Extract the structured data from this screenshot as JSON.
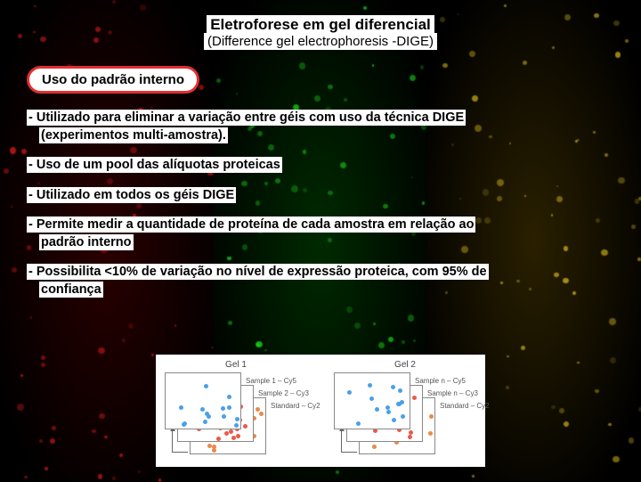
{
  "title": "Eletroforese em gel diferencial",
  "subtitle": "(Difference gel electrophoresis -DIGE)",
  "section_label": "Uso do padrão interno",
  "bullets": [
    {
      "main": "- Utilizado para eliminar a variação entre géis com uso da técnica DIGE",
      "indent": "(experimentos multi-amostra)."
    },
    {
      "main": "- Uso de um pool das alíquotas proteicas",
      "indent": ""
    },
    {
      "main": "- Utilizado em todos os géis DIGE",
      "indent": ""
    },
    {
      "main": "- Permite medir a quantidade de proteína de cada amostra em relação ao",
      "indent": "padrão interno"
    },
    {
      "main": "- Possibilita <10% de variação no nível de expressão proteica, com 95% de",
      "indent": "confiança"
    }
  ],
  "bg_panels": [
    {
      "base": "#2a0000",
      "spot_color": "#ff2020"
    },
    {
      "base": "#002a00",
      "spot_color": "#20ff20"
    },
    {
      "base": "#2a2000",
      "spot_color": "#f0d020"
    }
  ],
  "section_border_color": "#e03030",
  "diagram": {
    "groups": [
      {
        "title": "Gel 1",
        "layers": [
          {
            "label": "Sample 1 – Cy5",
            "color": "#4aa0e8"
          },
          {
            "label": "Sample 2 – Cy3",
            "color": "#e85a4a"
          },
          {
            "label": "Standard – Cy2",
            "color": "#e88a4a"
          }
        ]
      },
      {
        "title": "Gel 2",
        "layers": [
          {
            "label": "Sample n – Cy5",
            "color": "#4aa0e8"
          },
          {
            "label": "Sample n – Cy3",
            "color": "#e85a4a"
          },
          {
            "label": "Standard – Cy2",
            "color": "#e88a4a"
          }
        ]
      }
    ]
  }
}
